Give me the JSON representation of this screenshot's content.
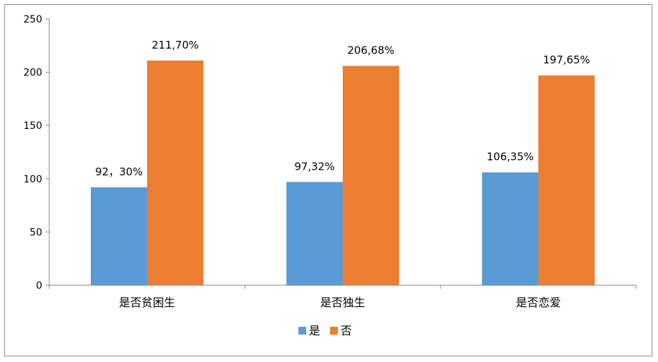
{
  "chart_data": {
    "type": "bar",
    "categories": [
      "是否贫困生",
      "是否独生",
      "是否恋爱"
    ],
    "series": [
      {
        "name": "是",
        "color": "#5B9BD5",
        "values": [
          92,
          97,
          106
        ],
        "labels": [
          "92，30%",
          "97,32%",
          "106,35%"
        ]
      },
      {
        "name": "否",
        "color": "#ED7D31",
        "values": [
          211,
          206,
          197
        ],
        "labels": [
          "211,70%",
          "206,68%",
          "197,65%"
        ]
      }
    ],
    "ylim": [
      0,
      250
    ],
    "yticks": [
      0,
      50,
      100,
      150,
      200,
      250
    ],
    "grid": false,
    "legend": "bottom"
  }
}
